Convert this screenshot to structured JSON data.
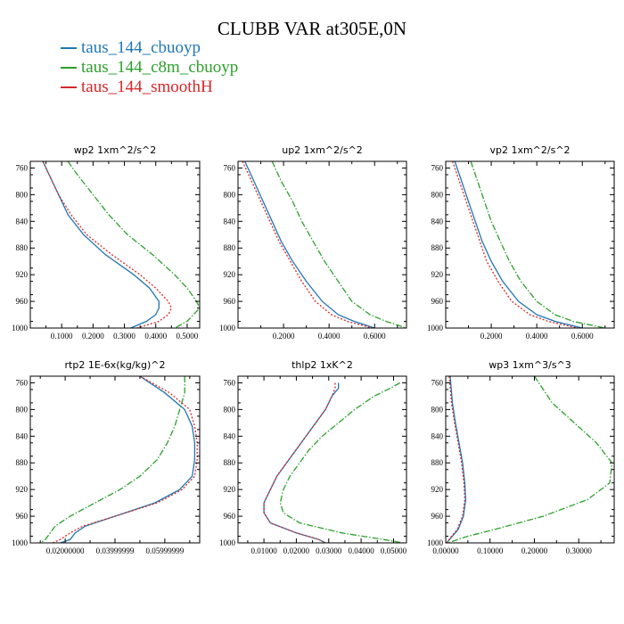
{
  "title": "CLUBB VAR at305E,0N",
  "legend": [
    {
      "label": "taus_144_cbuoyp",
      "color": "#1f77b4"
    },
    {
      "label": "taus_144_c8m_cbuoyp",
      "color": "#2ca02c"
    },
    {
      "label": "taus_144_smoothH",
      "color": "#d62728"
    }
  ],
  "chart_data": [
    {
      "type": "line",
      "title": "wp2   1xm^2/s^2",
      "xlim": [
        0,
        0.54
      ],
      "ylim": [
        1000,
        750
      ],
      "yticks": [
        760,
        800,
        840,
        880,
        920,
        960,
        1000
      ],
      "ytick_labels": [
        "760",
        "800",
        "840",
        "880",
        "920",
        "960",
        "1000"
      ],
      "xticks": [
        0.1,
        0.2,
        0.3,
        0.4,
        0.5
      ],
      "xtick_labels": [
        "0.1000",
        "0.2000",
        "0.3000",
        "0.4000",
        "0.5000"
      ],
      "y": [
        750,
        770,
        800,
        830,
        860,
        890,
        920,
        940,
        960,
        970,
        980,
        990,
        1000
      ],
      "series": [
        {
          "name": "taus_144_cbuoyp",
          "style": "solid",
          "values": [
            0.04,
            0.06,
            0.09,
            0.12,
            0.17,
            0.24,
            0.33,
            0.38,
            0.41,
            0.41,
            0.4,
            0.37,
            0.32
          ]
        },
        {
          "name": "taus_144_c8m_cbuoyp",
          "style": "dashed",
          "values": [
            0.12,
            0.15,
            0.2,
            0.25,
            0.31,
            0.39,
            0.46,
            0.5,
            0.53,
            0.54,
            0.52,
            0.5,
            0.46
          ]
        },
        {
          "name": "taus_144_smoothH",
          "style": "dotted",
          "values": [
            0.04,
            0.06,
            0.09,
            0.13,
            0.18,
            0.26,
            0.35,
            0.4,
            0.44,
            0.45,
            0.44,
            0.41,
            0.34
          ]
        }
      ]
    },
    {
      "type": "line",
      "title": "up2   1xm^2/s^2",
      "xlim": [
        0,
        0.74
      ],
      "ylim": [
        1000,
        750
      ],
      "yticks": [
        760,
        800,
        840,
        880,
        920,
        960,
        1000
      ],
      "ytick_labels": [
        "760",
        "800",
        "840",
        "880",
        "920",
        "960",
        "1000"
      ],
      "xticks": [
        0.2,
        0.4,
        0.6
      ],
      "xtick_labels": [
        "0.2000",
        "0.4000",
        "0.6000"
      ],
      "y": [
        750,
        780,
        810,
        840,
        870,
        900,
        930,
        960,
        980,
        990,
        1000
      ],
      "series": [
        {
          "name": "taus_144_cbuoyp",
          "style": "solid",
          "values": [
            0.03,
            0.07,
            0.11,
            0.15,
            0.19,
            0.24,
            0.3,
            0.37,
            0.44,
            0.51,
            0.6
          ]
        },
        {
          "name": "taus_144_c8m_cbuoyp",
          "style": "dashed",
          "values": [
            0.15,
            0.19,
            0.24,
            0.28,
            0.33,
            0.38,
            0.44,
            0.5,
            0.58,
            0.65,
            0.74
          ]
        },
        {
          "name": "taus_144_smoothH",
          "style": "dotted",
          "values": [
            0.02,
            0.06,
            0.1,
            0.14,
            0.18,
            0.23,
            0.28,
            0.34,
            0.41,
            0.48,
            0.59
          ]
        }
      ]
    },
    {
      "type": "line",
      "title": "vp2   1xm^2/s^2",
      "xlim": [
        0,
        0.74
      ],
      "ylim": [
        1000,
        750
      ],
      "yticks": [
        760,
        800,
        840,
        880,
        920,
        960,
        1000
      ],
      "ytick_labels": [
        "760",
        "800",
        "840",
        "880",
        "920",
        "960",
        "1000"
      ],
      "xticks": [
        0.2,
        0.4,
        0.6
      ],
      "xtick_labels": [
        "0.2000",
        "0.4000",
        "0.6000"
      ],
      "y": [
        750,
        780,
        810,
        840,
        870,
        900,
        930,
        960,
        980,
        990,
        1000
      ],
      "series": [
        {
          "name": "taus_144_cbuoyp",
          "style": "solid",
          "values": [
            0.04,
            0.07,
            0.1,
            0.13,
            0.16,
            0.2,
            0.25,
            0.32,
            0.4,
            0.48,
            0.6
          ]
        },
        {
          "name": "taus_144_c8m_cbuoyp",
          "style": "dashed",
          "values": [
            0.11,
            0.14,
            0.17,
            0.2,
            0.24,
            0.28,
            0.33,
            0.4,
            0.48,
            0.56,
            0.7
          ]
        },
        {
          "name": "taus_144_smoothH",
          "style": "dotted",
          "values": [
            0.03,
            0.06,
            0.09,
            0.12,
            0.15,
            0.18,
            0.23,
            0.29,
            0.37,
            0.45,
            0.58
          ]
        }
      ]
    },
    {
      "type": "line",
      "title": "rtp2   1E-6x(kg/kg)^2",
      "xlim": [
        0.006,
        0.074
      ],
      "ylim": [
        1000,
        750
      ],
      "yticks": [
        760,
        800,
        840,
        880,
        920,
        960,
        1000
      ],
      "ytick_labels": [
        "760",
        "800",
        "840",
        "880",
        "920",
        "960",
        "1000"
      ],
      "xticks": [
        0.02,
        0.04,
        0.06
      ],
      "xtick_labels": [
        "0.02000000",
        "0.03999999",
        "0.05999999"
      ],
      "y": [
        750,
        775,
        800,
        825,
        850,
        875,
        900,
        920,
        940,
        960,
        975,
        985,
        995,
        1000
      ],
      "series": [
        {
          "name": "taus_144_cbuoyp",
          "style": "solid",
          "values": [
            0.05,
            0.06,
            0.068,
            0.071,
            0.072,
            0.072,
            0.071,
            0.066,
            0.056,
            0.04,
            0.028,
            0.024,
            0.022,
            0.018
          ]
        },
        {
          "name": "taus_144_c8m_cbuoyp",
          "style": "dashed",
          "values": [
            0.068,
            0.068,
            0.066,
            0.064,
            0.061,
            0.057,
            0.05,
            0.042,
            0.032,
            0.022,
            0.016,
            0.014,
            0.012,
            0.01
          ]
        },
        {
          "name": "taus_144_smoothH",
          "style": "dotted",
          "values": [
            0.05,
            0.062,
            0.07,
            0.072,
            0.073,
            0.073,
            0.072,
            0.067,
            0.057,
            0.04,
            0.027,
            0.022,
            0.018,
            0.015
          ]
        }
      ]
    },
    {
      "type": "line",
      "title": "thlp2   1xK^2",
      "xlim": [
        0.002,
        0.054
      ],
      "ylim": [
        1000,
        750
      ],
      "yticks": [
        760,
        800,
        840,
        880,
        920,
        960,
        1000
      ],
      "ytick_labels": [
        "760",
        "800",
        "840",
        "880",
        "920",
        "960",
        "1000"
      ],
      "xticks": [
        0.01,
        0.02,
        0.03,
        0.04,
        0.05
      ],
      "xtick_labels": [
        "0.01000",
        "0.02000",
        "0.03000",
        "0.04000",
        "0.05000"
      ],
      "y": [
        760,
        768,
        780,
        800,
        820,
        840,
        860,
        880,
        900,
        920,
        940,
        955,
        970,
        985,
        995,
        1000
      ],
      "series": [
        {
          "name": "taus_144_cbuoyp",
          "style": "solid",
          "values": [
            0.033,
            0.033,
            0.031,
            0.029,
            0.026,
            0.023,
            0.02,
            0.017,
            0.014,
            0.012,
            0.01,
            0.01,
            0.012,
            0.02,
            0.027,
            0.029
          ]
        },
        {
          "name": "taus_144_c8m_cbuoyp",
          "style": "dashed",
          "values": [
            0.052,
            0.049,
            0.044,
            0.038,
            0.033,
            0.028,
            0.024,
            0.021,
            0.018,
            0.016,
            0.015,
            0.016,
            0.021,
            0.034,
            0.047,
            0.053
          ]
        },
        {
          "name": "taus_144_smoothH",
          "style": "dotted",
          "values": [
            0.032,
            0.032,
            0.031,
            0.029,
            0.026,
            0.023,
            0.02,
            0.017,
            0.014,
            0.012,
            0.01,
            0.01,
            0.012,
            0.02,
            0.027,
            0.029
          ]
        }
      ]
    },
    {
      "type": "line",
      "title": "wp3   1xm^3/s^3",
      "xlim": [
        0,
        0.38
      ],
      "ylim": [
        1000,
        750
      ],
      "yticks": [
        760,
        800,
        840,
        880,
        920,
        960,
        1000
      ],
      "ytick_labels": [
        "760",
        "800",
        "840",
        "880",
        "920",
        "960",
        "1000"
      ],
      "xticks": [
        0.0,
        0.1,
        0.2,
        0.3
      ],
      "xtick_labels": [
        "0.00000",
        "0.10000",
        "0.20000",
        "0.30000"
      ],
      "y": [
        750,
        790,
        820,
        850,
        880,
        910,
        935,
        960,
        980,
        990,
        1000
      ],
      "series": [
        {
          "name": "taus_144_cbuoyp",
          "style": "solid",
          "values": [
            0.01,
            0.015,
            0.022,
            0.03,
            0.038,
            0.043,
            0.045,
            0.04,
            0.028,
            0.015,
            0.002
          ]
        },
        {
          "name": "taus_144_c8m_cbuoyp",
          "style": "dashed",
          "values": [
            0.2,
            0.24,
            0.29,
            0.34,
            0.375,
            0.37,
            0.32,
            0.22,
            0.11,
            0.05,
            0.005
          ]
        },
        {
          "name": "taus_144_smoothH",
          "style": "dotted",
          "values": [
            0.008,
            0.013,
            0.02,
            0.028,
            0.036,
            0.041,
            0.043,
            0.038,
            0.026,
            0.013,
            0.002
          ]
        }
      ]
    }
  ]
}
